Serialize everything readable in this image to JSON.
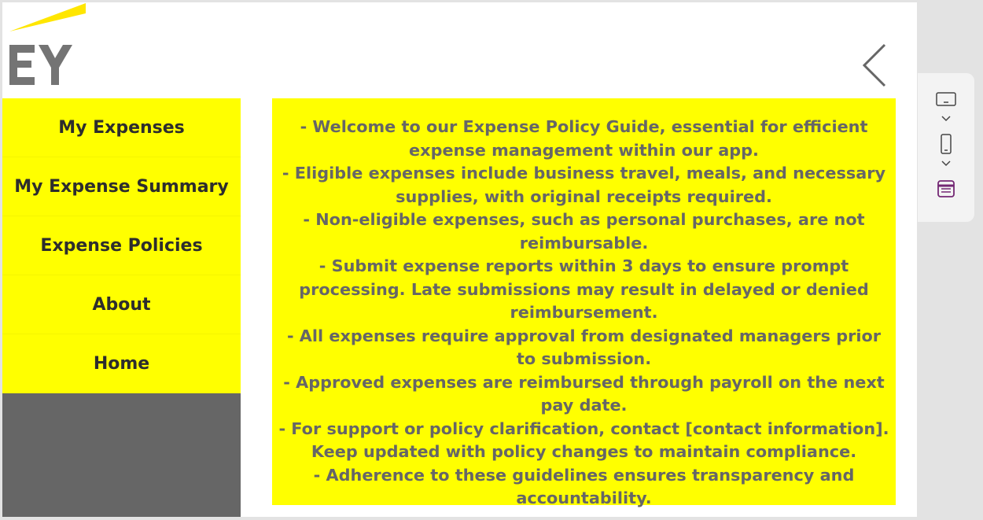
{
  "brand": {
    "logo_text": "EY",
    "accent_color": "#ffff00",
    "logo_gray": "#747474"
  },
  "header": {
    "back_icon": "chevron-left-icon"
  },
  "nav": {
    "items": [
      {
        "label": "My Expenses"
      },
      {
        "label": "My Expense Summary"
      },
      {
        "label": "Expense Policies"
      },
      {
        "label": "About"
      },
      {
        "label": "Home"
      }
    ]
  },
  "policy": {
    "text": "- Welcome to our Expense Policy Guide, essential for efficient expense management within our app.\n- Eligible expenses include business travel, meals, and necessary supplies, with original receipts required.\n- Non-eligible expenses, such as personal purchases, are not reimbursable.\n- Submit expense reports within 3 days to ensure prompt processing. Late submissions may result in delayed or denied reimbursement.\n- All expenses require approval from designated managers prior to submission.\n- Approved expenses are reimbursed through payroll on the next pay date.\n- For support or policy clarification, contact [contact information]. Keep updated with policy changes to maintain compliance.\n- Adherence to these guidelines ensures transparency and accountability."
  },
  "toolbar": {
    "icons": [
      "tablet-landscape-icon",
      "chevron-down-icon",
      "phone-icon",
      "chevron-down-icon",
      "app-settings-icon"
    ],
    "app_icon_color": "#742774"
  }
}
